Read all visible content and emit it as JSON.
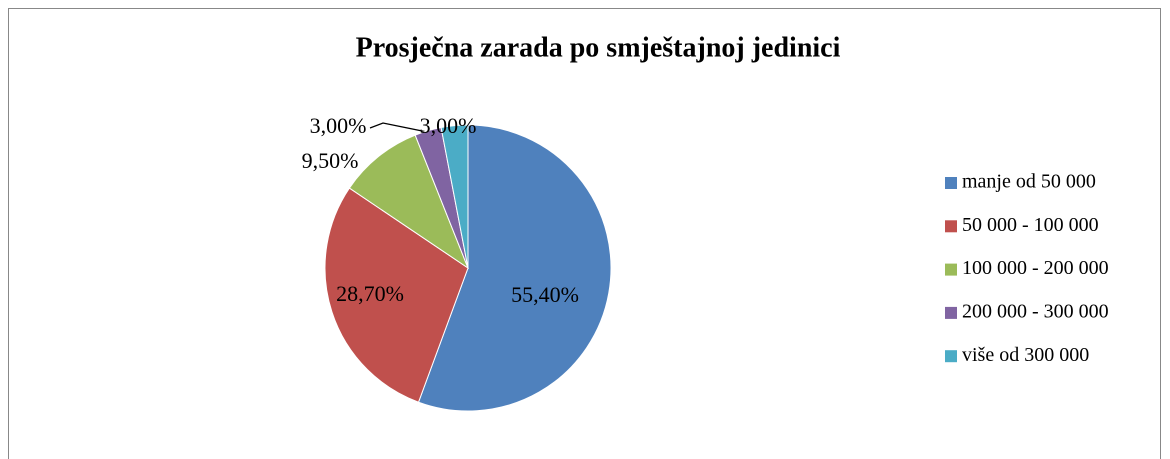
{
  "chart_data": {
    "type": "pie",
    "title": "Prosječna zarada po smještajnoj jedinici",
    "categories": [
      "manje od 50 000",
      "50 000 - 100 000",
      "100 000 - 200 000",
      "200 000 - 300 000",
      "više od 300 000"
    ],
    "values": [
      55.4,
      28.7,
      9.5,
      3.0,
      3.0
    ],
    "value_labels": [
      "55,40%",
      "28,70%",
      "9,50%",
      "3,00%",
      "3,00%"
    ],
    "colors": [
      "#4f81bd",
      "#c0504d",
      "#9bbb59",
      "#8064a2",
      "#4bacc6"
    ],
    "legend": "right"
  }
}
